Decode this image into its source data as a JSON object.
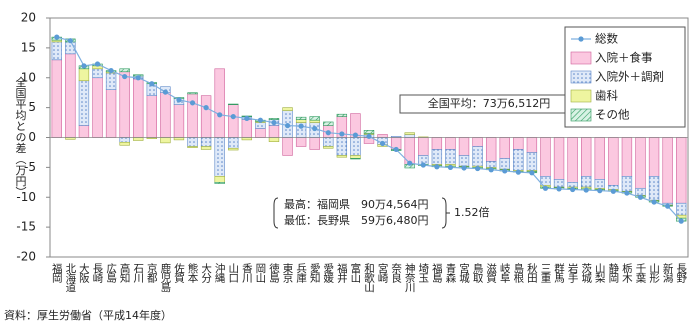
{
  "chart_data": {
    "type": "bar",
    "categories": [
      "福岡",
      "北海道",
      "大阪",
      "長崎",
      "広島",
      "高知",
      "石川",
      "京都",
      "鹿児島",
      "佐賀",
      "熊本",
      "大分",
      "沖縄",
      "山口",
      "香川",
      "岡山",
      "徳島",
      "東京",
      "兵庫",
      "愛知",
      "愛媛",
      "福井",
      "富山",
      "和歌山",
      "宮崎",
      "奈良",
      "神奈川",
      "埼玉",
      "福島",
      "青森",
      "宮城",
      "鳥取",
      "滋賀",
      "岐阜",
      "島根",
      "秋田",
      "三重",
      "群馬",
      "岩手",
      "茨城",
      "山梨",
      "静岡",
      "栃木",
      "千葉",
      "山形",
      "新潟",
      "長野"
    ],
    "series": [
      {
        "name": "総数",
        "type": "line",
        "color": "#7fb0e0",
        "values": [
          16.8,
          16.2,
          12.0,
          12.3,
          11.2,
          10.2,
          10.0,
          9.0,
          7.6,
          6.3,
          5.8,
          5.0,
          3.8,
          3.5,
          3.2,
          2.9,
          2.5,
          2.0,
          1.9,
          1.5,
          0.8,
          0.6,
          0.4,
          0.2,
          -1.0,
          -2.0,
          -4.3,
          -4.6,
          -4.9,
          -5.0,
          -5.1,
          -5.2,
          -5.4,
          -5.6,
          -5.8,
          -5.9,
          -8.5,
          -8.6,
          -8.7,
          -8.8,
          -8.9,
          -9.0,
          -9.3,
          -10.0,
          -10.8,
          -11.5,
          -14.0
        ]
      },
      {
        "name": "入院＋食事",
        "type": "bar",
        "color": "#fbc8e0",
        "pattern": "solid",
        "values": [
          13.0,
          14.0,
          2.0,
          10.0,
          8.0,
          11.0,
          9.8,
          7.0,
          7.5,
          5.5,
          7.3,
          7.0,
          11.5,
          5.5,
          3.0,
          1.5,
          2.0,
          -3.0,
          -1.5,
          -2.0,
          2.0,
          3.5,
          4.0,
          -1.0,
          0.5,
          -2.0,
          -4.5,
          -3.0,
          -2.0,
          -2.0,
          -3.0,
          -1.5,
          -4.0,
          -3.5,
          -2.0,
          -2.5,
          -6.5,
          -7.0,
          -7.5,
          -6.5,
          -7.0,
          -8.0,
          -6.5,
          -8.5,
          -6.5,
          -11.0,
          -11.0
        ]
      },
      {
        "name": "入院外＋調剤",
        "type": "bar",
        "color": "#dfe9f8",
        "pattern": "dots",
        "values": [
          3.0,
          2.0,
          7.5,
          1.5,
          2.8,
          -0.8,
          0.5,
          2.0,
          1.0,
          1.0,
          -1.5,
          -1.5,
          -6.5,
          -1.8,
          0.5,
          1.0,
          1.0,
          4.5,
          2.5,
          2.5,
          -1.5,
          -3.0,
          -3.0,
          0.5,
          -1.2,
          0.2,
          0.5,
          -1.5,
          -2.5,
          -2.5,
          -1.8,
          -3.3,
          -1.0,
          -1.8,
          -3.5,
          -3.0,
          -1.5,
          -1.3,
          -0.8,
          -1.8,
          -1.5,
          -0.7,
          -2.5,
          -1.2,
          -4.0,
          -0.3,
          -2.0
        ]
      },
      {
        "name": "歯科",
        "type": "bar",
        "color": "#eef5a0",
        "pattern": "solid",
        "values": [
          0.3,
          -0.3,
          2.0,
          0.5,
          0.2,
          -0.5,
          -0.5,
          -0.2,
          -0.9,
          -0.4,
          -0.2,
          -0.5,
          -1.0,
          -0.3,
          -0.4,
          0.2,
          -0.7,
          0.5,
          0.5,
          0.4,
          -0.3,
          -0.3,
          -0.5,
          0.2,
          -0.3,
          0.0,
          0.3,
          0.1,
          -0.2,
          -0.3,
          -0.1,
          -0.2,
          -0.2,
          -0.1,
          -0.2,
          -0.2,
          -0.3,
          -0.1,
          -0.2,
          -0.3,
          -0.2,
          -0.2,
          -0.1,
          -0.1,
          -0.1,
          -0.1,
          -0.5
        ]
      },
      {
        "name": "その他",
        "type": "bar",
        "color": "#cfeedd",
        "pattern": "hatch",
        "values": [
          0.5,
          0.5,
          0.5,
          0.3,
          0.2,
          0.5,
          0.2,
          0.2,
          0,
          0.2,
          0.2,
          0,
          -0.2,
          0.1,
          0.1,
          0.2,
          0.2,
          0.0,
          0.4,
          0.6,
          0.6,
          0.4,
          -0.1,
          0.5,
          0,
          -0.2,
          -0.6,
          -0.2,
          -0.2,
          -0.2,
          -0.2,
          -0.2,
          -0.2,
          -0.2,
          -0.1,
          -0.2,
          -0.2,
          -0.2,
          -0.2,
          -0.2,
          -0.2,
          -0.1,
          -0.2,
          -0.2,
          -0.2,
          -0.1,
          -0.5
        ]
      }
    ],
    "ylabel": "全国平均との差（万円）",
    "ylim": [
      -20,
      20
    ],
    "yticks": [
      -20,
      -15,
      -10,
      -5,
      0,
      5,
      10,
      15,
      20
    ],
    "legend": "upper right",
    "annotations": {
      "average": "全国平均：73万6,512円",
      "max": "最高：福岡県　90万4,564円",
      "min": "最低：長野県　59万6,480円",
      "ratio": "1.52倍"
    },
    "source": "資料：厚生労働省（平成14年度）"
  }
}
